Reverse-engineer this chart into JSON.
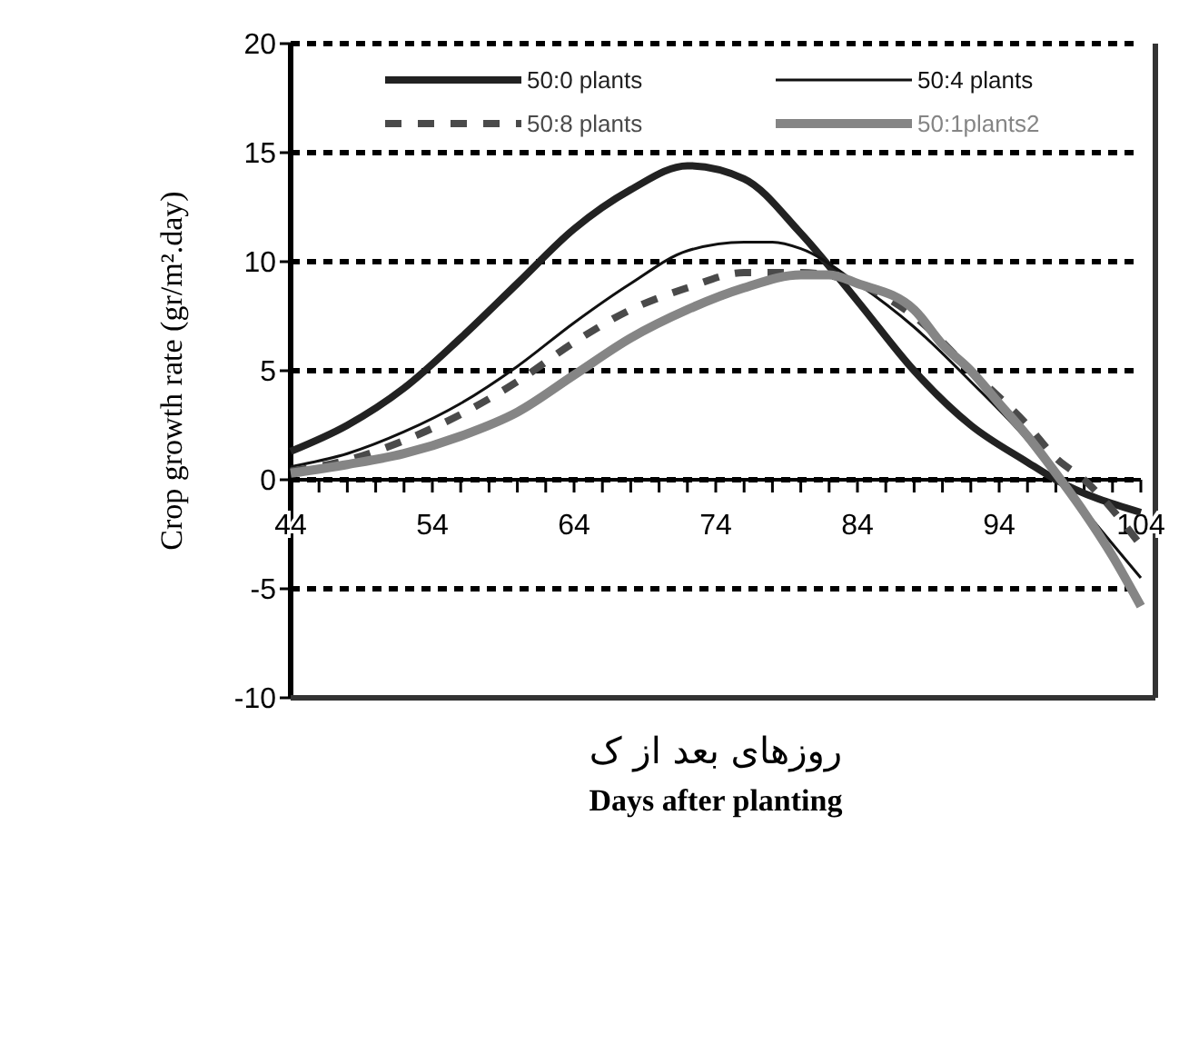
{
  "chart_data": {
    "type": "line",
    "xlabel": "Days after planting",
    "ylabel": "Crop growth rate (gr/m².day)",
    "annotations": [
      "روزهای بعد از ک"
    ],
    "xlim": [
      44,
      104
    ],
    "xticks": [
      44,
      54,
      64,
      74,
      84,
      94,
      104
    ],
    "ylim": [
      -10,
      20
    ],
    "yticks": [
      -10,
      -5,
      0,
      5,
      10,
      15,
      20
    ],
    "grid": "y",
    "legend": "top",
    "marker": "none",
    "series": [
      {
        "name": "50:0 plants",
        "color": "#222222",
        "line_style": "solid",
        "x": [
          44,
          48,
          52,
          56,
          60,
          64,
          68,
          72,
          76,
          80,
          84,
          88,
          92,
          96,
          98,
          104
        ],
        "values": [
          1.3,
          2.5,
          4.2,
          6.5,
          9.0,
          11.5,
          13.3,
          14.4,
          13.8,
          11.3,
          8.2,
          5.0,
          2.5,
          0.8,
          0,
          -1.5
        ]
      },
      {
        "name": "50:4 plants",
        "color": "#111111",
        "line_style": "solid",
        "x": [
          44,
          48,
          52,
          56,
          60,
          64,
          68,
          72,
          76,
          78,
          80,
          84,
          88,
          92,
          96,
          98,
          104
        ],
        "values": [
          0.6,
          1.2,
          2.2,
          3.5,
          5.2,
          7.2,
          9.0,
          10.5,
          10.9,
          10.9,
          10.6,
          9.0,
          7.0,
          4.5,
          1.8,
          0.2,
          -4.5
        ]
      },
      {
        "name": "50:8 plants",
        "color": "#4a4a4a",
        "line_style": "dashed",
        "x": [
          44,
          48,
          52,
          56,
          60,
          64,
          68,
          72,
          76,
          80,
          84,
          88,
          92,
          96,
          98,
          100,
          104
        ],
        "values": [
          0.4,
          0.9,
          1.8,
          3.0,
          4.5,
          6.3,
          7.8,
          8.8,
          9.5,
          9.5,
          9.0,
          7.5,
          5.0,
          2.5,
          1.0,
          0,
          -3.0
        ]
      },
      {
        "name": "50:1plants2",
        "color": "#858585",
        "line_style": "solid",
        "x": [
          44,
          48,
          52,
          56,
          60,
          64,
          68,
          72,
          76,
          80,
          82,
          84,
          88,
          90,
          92,
          94,
          96,
          98,
          100,
          102,
          104
        ],
        "values": [
          0.3,
          0.7,
          1.2,
          2.0,
          3.1,
          4.8,
          6.5,
          7.8,
          8.8,
          9.4,
          9.4,
          9.0,
          7.8,
          6.2,
          5.0,
          3.5,
          2.0,
          0.3,
          -1.5,
          -3.5,
          -5.8
        ]
      }
    ]
  }
}
